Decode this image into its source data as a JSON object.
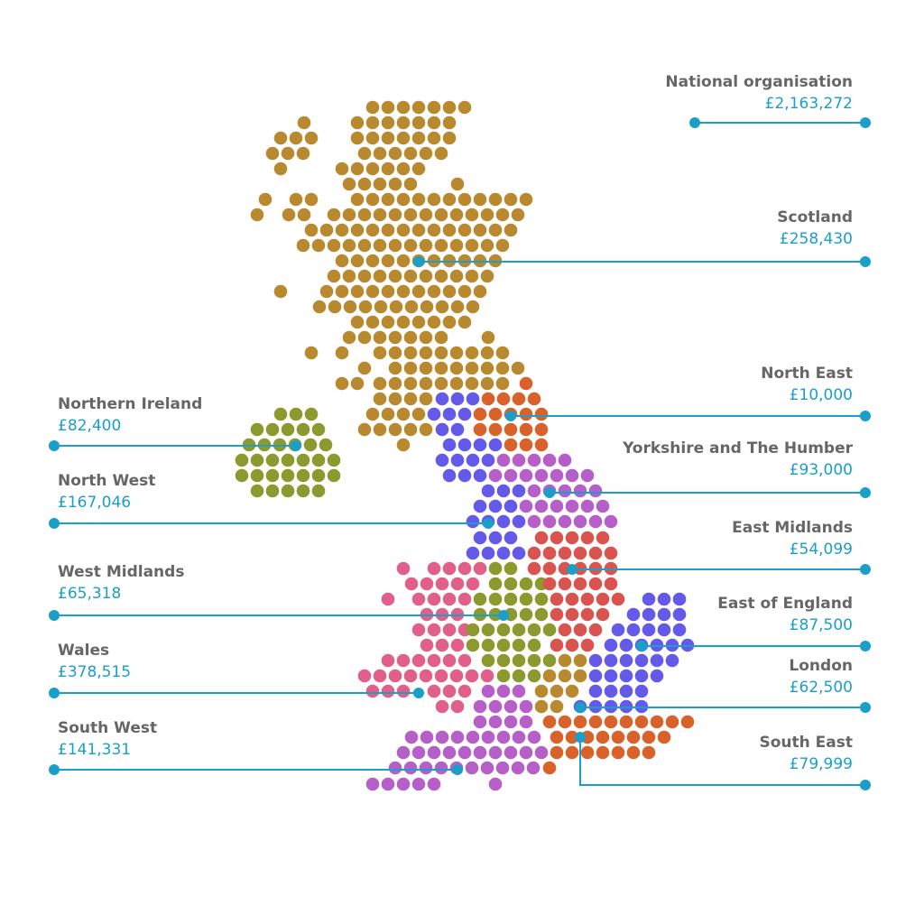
{
  "regions": [
    {
      "name": "National organisation",
      "amount": "£2,163,272"
    },
    {
      "name": "Scotland",
      "amount": "£258,430"
    },
    {
      "name": "North East",
      "amount": "£10,000"
    },
    {
      "name": "Yorkshire and The Humber",
      "amount": "£93,000"
    },
    {
      "name": "East Midlands",
      "amount": "£54,099"
    },
    {
      "name": "East of England",
      "amount": "£87,500"
    },
    {
      "name": "London",
      "amount": "£62,500"
    },
    {
      "name": "South East",
      "amount": "£79,999"
    },
    {
      "name": "Northern Ireland",
      "amount": "£82,400"
    },
    {
      "name": "North West",
      "amount": "£167,046"
    },
    {
      "name": "West Midlands",
      "amount": "£65,318"
    },
    {
      "name": "Wales",
      "amount": "£378,515"
    },
    {
      "name": "South West",
      "amount": "£141,331"
    }
  ]
}
